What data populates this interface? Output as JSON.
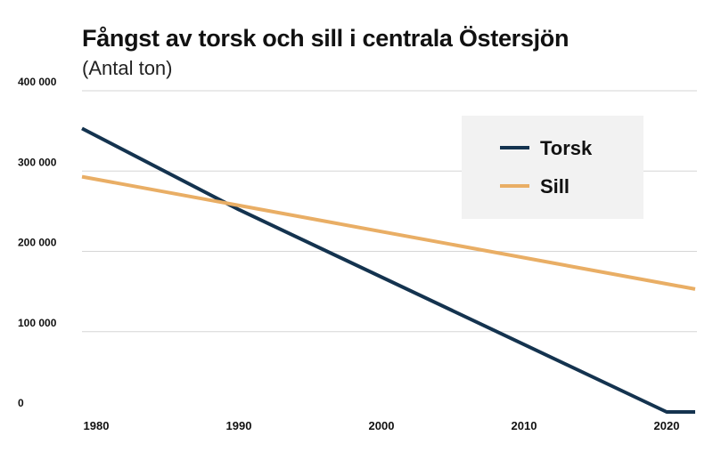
{
  "chart_data": {
    "type": "line",
    "title": "Fångst av torsk och sill i centrala Östersjön",
    "subtitle": "(Antal ton)",
    "xlabel": "",
    "ylabel": "",
    "xlim": [
      1979,
      2022
    ],
    "ylim": [
      0,
      400000
    ],
    "x_ticks": [
      1980,
      1990,
      2000,
      2010,
      2020
    ],
    "y_ticks": [
      {
        "value": 0,
        "label": "0"
      },
      {
        "value": 100000,
        "label": "100 000"
      },
      {
        "value": 200000,
        "label": "200 000"
      },
      {
        "value": 300000,
        "label": "300 000"
      },
      {
        "value": 400000,
        "label": "400 000"
      }
    ],
    "grid": true,
    "legend_position": "top-right",
    "series": [
      {
        "name": "Torsk",
        "color": "#14334f",
        "x": [
          1979,
          1990,
          2020,
          2022
        ],
        "y": [
          353000,
          252000,
          0,
          0
        ]
      },
      {
        "name": "Sill",
        "color": "#e9ae65",
        "x": [
          1979,
          2022
        ],
        "y": [
          293000,
          153000
        ]
      }
    ]
  },
  "colors": {
    "grid": "#d6d6d6",
    "legend_bg": "#f2f2f2"
  }
}
